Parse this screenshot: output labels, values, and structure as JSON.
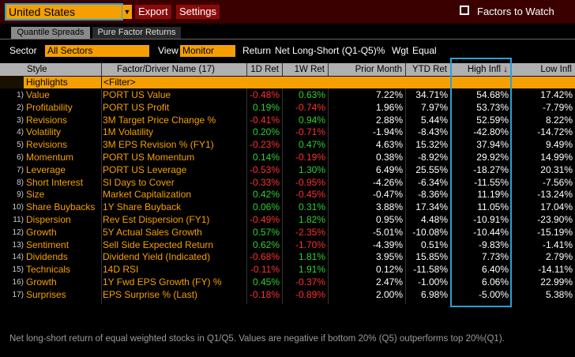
{
  "toolbar": {
    "region": "United States",
    "export": "Export",
    "settings": "Settings",
    "factors_to_watch": "Factors to Watch"
  },
  "tabs": [
    "Quantile Spreads",
    "Pure Factor Returns"
  ],
  "controls": {
    "sector_label": "Sector",
    "sector": "All Sectors",
    "view_label": "View",
    "view": "Monitor",
    "return_label": "Return",
    "return": "Net Long-Short (Q1-Q5)%",
    "wgt_label": "Wgt",
    "wgt": "Equal"
  },
  "table": {
    "headers": [
      "Style",
      "Factor/Driver Name (17)",
      "1D Ret",
      "1W Ret",
      "Prior Month",
      "YTD Ret",
      "High Infl ↓",
      "Low Infl"
    ],
    "filter": {
      "style": "Highlights",
      "name": "<Filter>"
    },
    "rows": [
      [
        "1)",
        "Value",
        "PORT US Value",
        "-0.48%",
        "0.63%",
        "7.22%",
        "34.71%",
        "54.68%",
        "17.42%"
      ],
      [
        "2)",
        "Profitability",
        "PORT US Profit",
        "0.19%",
        "-0.74%",
        "1.96%",
        "7.97%",
        "53.73%",
        "-7.79%"
      ],
      [
        "3)",
        "Revisions",
        "3M Target Price Change %",
        "-0.41%",
        "0.94%",
        "2.88%",
        "5.44%",
        "52.59%",
        "8.22%"
      ],
      [
        "4)",
        "Volatility",
        "1M Volatility",
        "0.20%",
        "-0.71%",
        "-1.94%",
        "-8.43%",
        "-42.80%",
        "-14.72%"
      ],
      [
        "5)",
        "Revisions",
        "3M EPS Revision % (FY1)",
        "-0.23%",
        "0.47%",
        "4.63%",
        "15.32%",
        "37.94%",
        "9.49%"
      ],
      [
        "6)",
        "Momentum",
        "PORT US Momentum",
        "0.14%",
        "-0.19%",
        "0.38%",
        "-8.92%",
        "29.92%",
        "14.99%"
      ],
      [
        "7)",
        "Leverage",
        "PORT US Leverage",
        "-0.53%",
        "1.30%",
        "6.49%",
        "25.55%",
        "-18.27%",
        "20.31%"
      ],
      [
        "8)",
        "Short Interest",
        "SI Days to Cover",
        "-0.33%",
        "-0.95%",
        "-4.26%",
        "-6.34%",
        "-11.55%",
        "-7.56%"
      ],
      [
        "9)",
        "Size",
        "Market Capitalization",
        "0.42%",
        "-0.45%",
        "-0.47%",
        "-8.36%",
        "11.19%",
        "-13.24%"
      ],
      [
        "10)",
        "Share Buybacks",
        "1Y Share Buyback",
        "0.06%",
        "0.31%",
        "3.88%",
        "17.34%",
        "11.05%",
        "17.04%"
      ],
      [
        "11)",
        "Dispersion",
        "Rev Est Dispersion (FY1)",
        "-0.49%",
        "1.82%",
        "0.95%",
        "4.48%",
        "-10.91%",
        "-23.90%"
      ],
      [
        "12)",
        "Growth",
        "5Y Actual Sales Growth",
        "0.57%",
        "-2.35%",
        "-5.01%",
        "-10.08%",
        "-10.44%",
        "-15.19%"
      ],
      [
        "13)",
        "Sentiment",
        "Sell Side Expected Return",
        "0.62%",
        "-1.70%",
        "-4.39%",
        "0.51%",
        "-9.83%",
        "-1.41%"
      ],
      [
        "14)",
        "Dividends",
        "Dividend Yield (Indicated)",
        "-0.68%",
        "1.81%",
        "3.95%",
        "15.85%",
        "7.73%",
        "2.79%"
      ],
      [
        "15)",
        "Technicals",
        "14D RSI",
        "-0.11%",
        "1.91%",
        "0.12%",
        "-11.58%",
        "6.40%",
        "-14.11%"
      ],
      [
        "16)",
        "Growth",
        "1Y Fwd EPS Growth (FY) %",
        "0.45%",
        "-0.37%",
        "2.47%",
        "-1.00%",
        "6.06%",
        "22.99%"
      ],
      [
        "17)",
        "Surprises",
        "EPS Surprise % (Last)",
        "-0.18%",
        "-0.89%",
        "2.00%",
        "6.98%",
        "-5.00%",
        "5.38%"
      ]
    ]
  },
  "footer": "Net long-short return of equal weighted stocks in Q1/Q5. Values are negative if bottom 20% (Q5) outperforms top 20%(Q1)."
}
